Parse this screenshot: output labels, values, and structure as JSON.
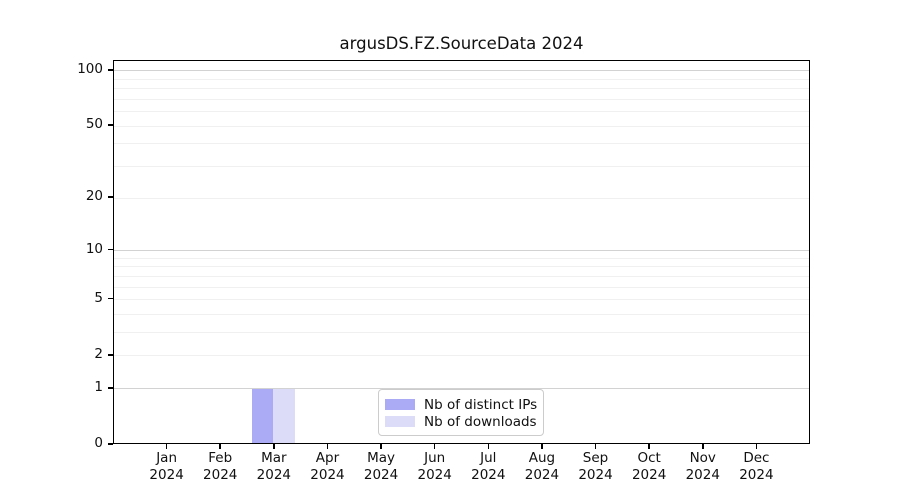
{
  "chart_data": {
    "type": "bar",
    "title": "argusDS.FZ.SourceData 2024",
    "x_tick_months": [
      "Jan",
      "Feb",
      "Mar",
      "Apr",
      "May",
      "Jun",
      "Jul",
      "Aug",
      "Sep",
      "Oct",
      "Nov",
      "Dec"
    ],
    "x_tick_year": "2024",
    "categories": [
      "Jan 2024",
      "Feb 2024",
      "Mar 2024",
      "Apr 2024",
      "May 2024",
      "Jun 2024",
      "Jul 2024",
      "Aug 2024",
      "Sep 2024",
      "Oct 2024",
      "Nov 2024",
      "Dec 2024"
    ],
    "series": [
      {
        "name": "Nb of distinct IPs",
        "color": "#abaaf5",
        "values": [
          0,
          0,
          1,
          0,
          0,
          0,
          0,
          0,
          0,
          0,
          0,
          0
        ]
      },
      {
        "name": "Nb of downloads",
        "color": "#dcdbf8",
        "values": [
          0,
          0,
          1,
          0,
          0,
          0,
          0,
          0,
          0,
          0,
          0,
          0
        ]
      }
    ],
    "yscale": "log1p",
    "ylim": [
      0,
      113
    ],
    "y_tick_values": [
      0,
      1,
      2,
      5,
      10,
      20,
      50,
      100
    ],
    "y_tick_labels": [
      "0",
      "1",
      "2",
      "5",
      "10",
      "20",
      "50",
      "100"
    ],
    "y_major_gridlines": [
      1,
      10,
      100
    ],
    "y_minor_gridlines": [
      2,
      3,
      4,
      5,
      6,
      7,
      8,
      9,
      20,
      30,
      40,
      50,
      60,
      70,
      80,
      90
    ],
    "grid": "on",
    "legend_position": "lower center",
    "colors": {
      "major_grid": "#d2d2d2",
      "minor_grid": "#f0f0f0",
      "spine": "#000000",
      "text": "#111111"
    }
  }
}
